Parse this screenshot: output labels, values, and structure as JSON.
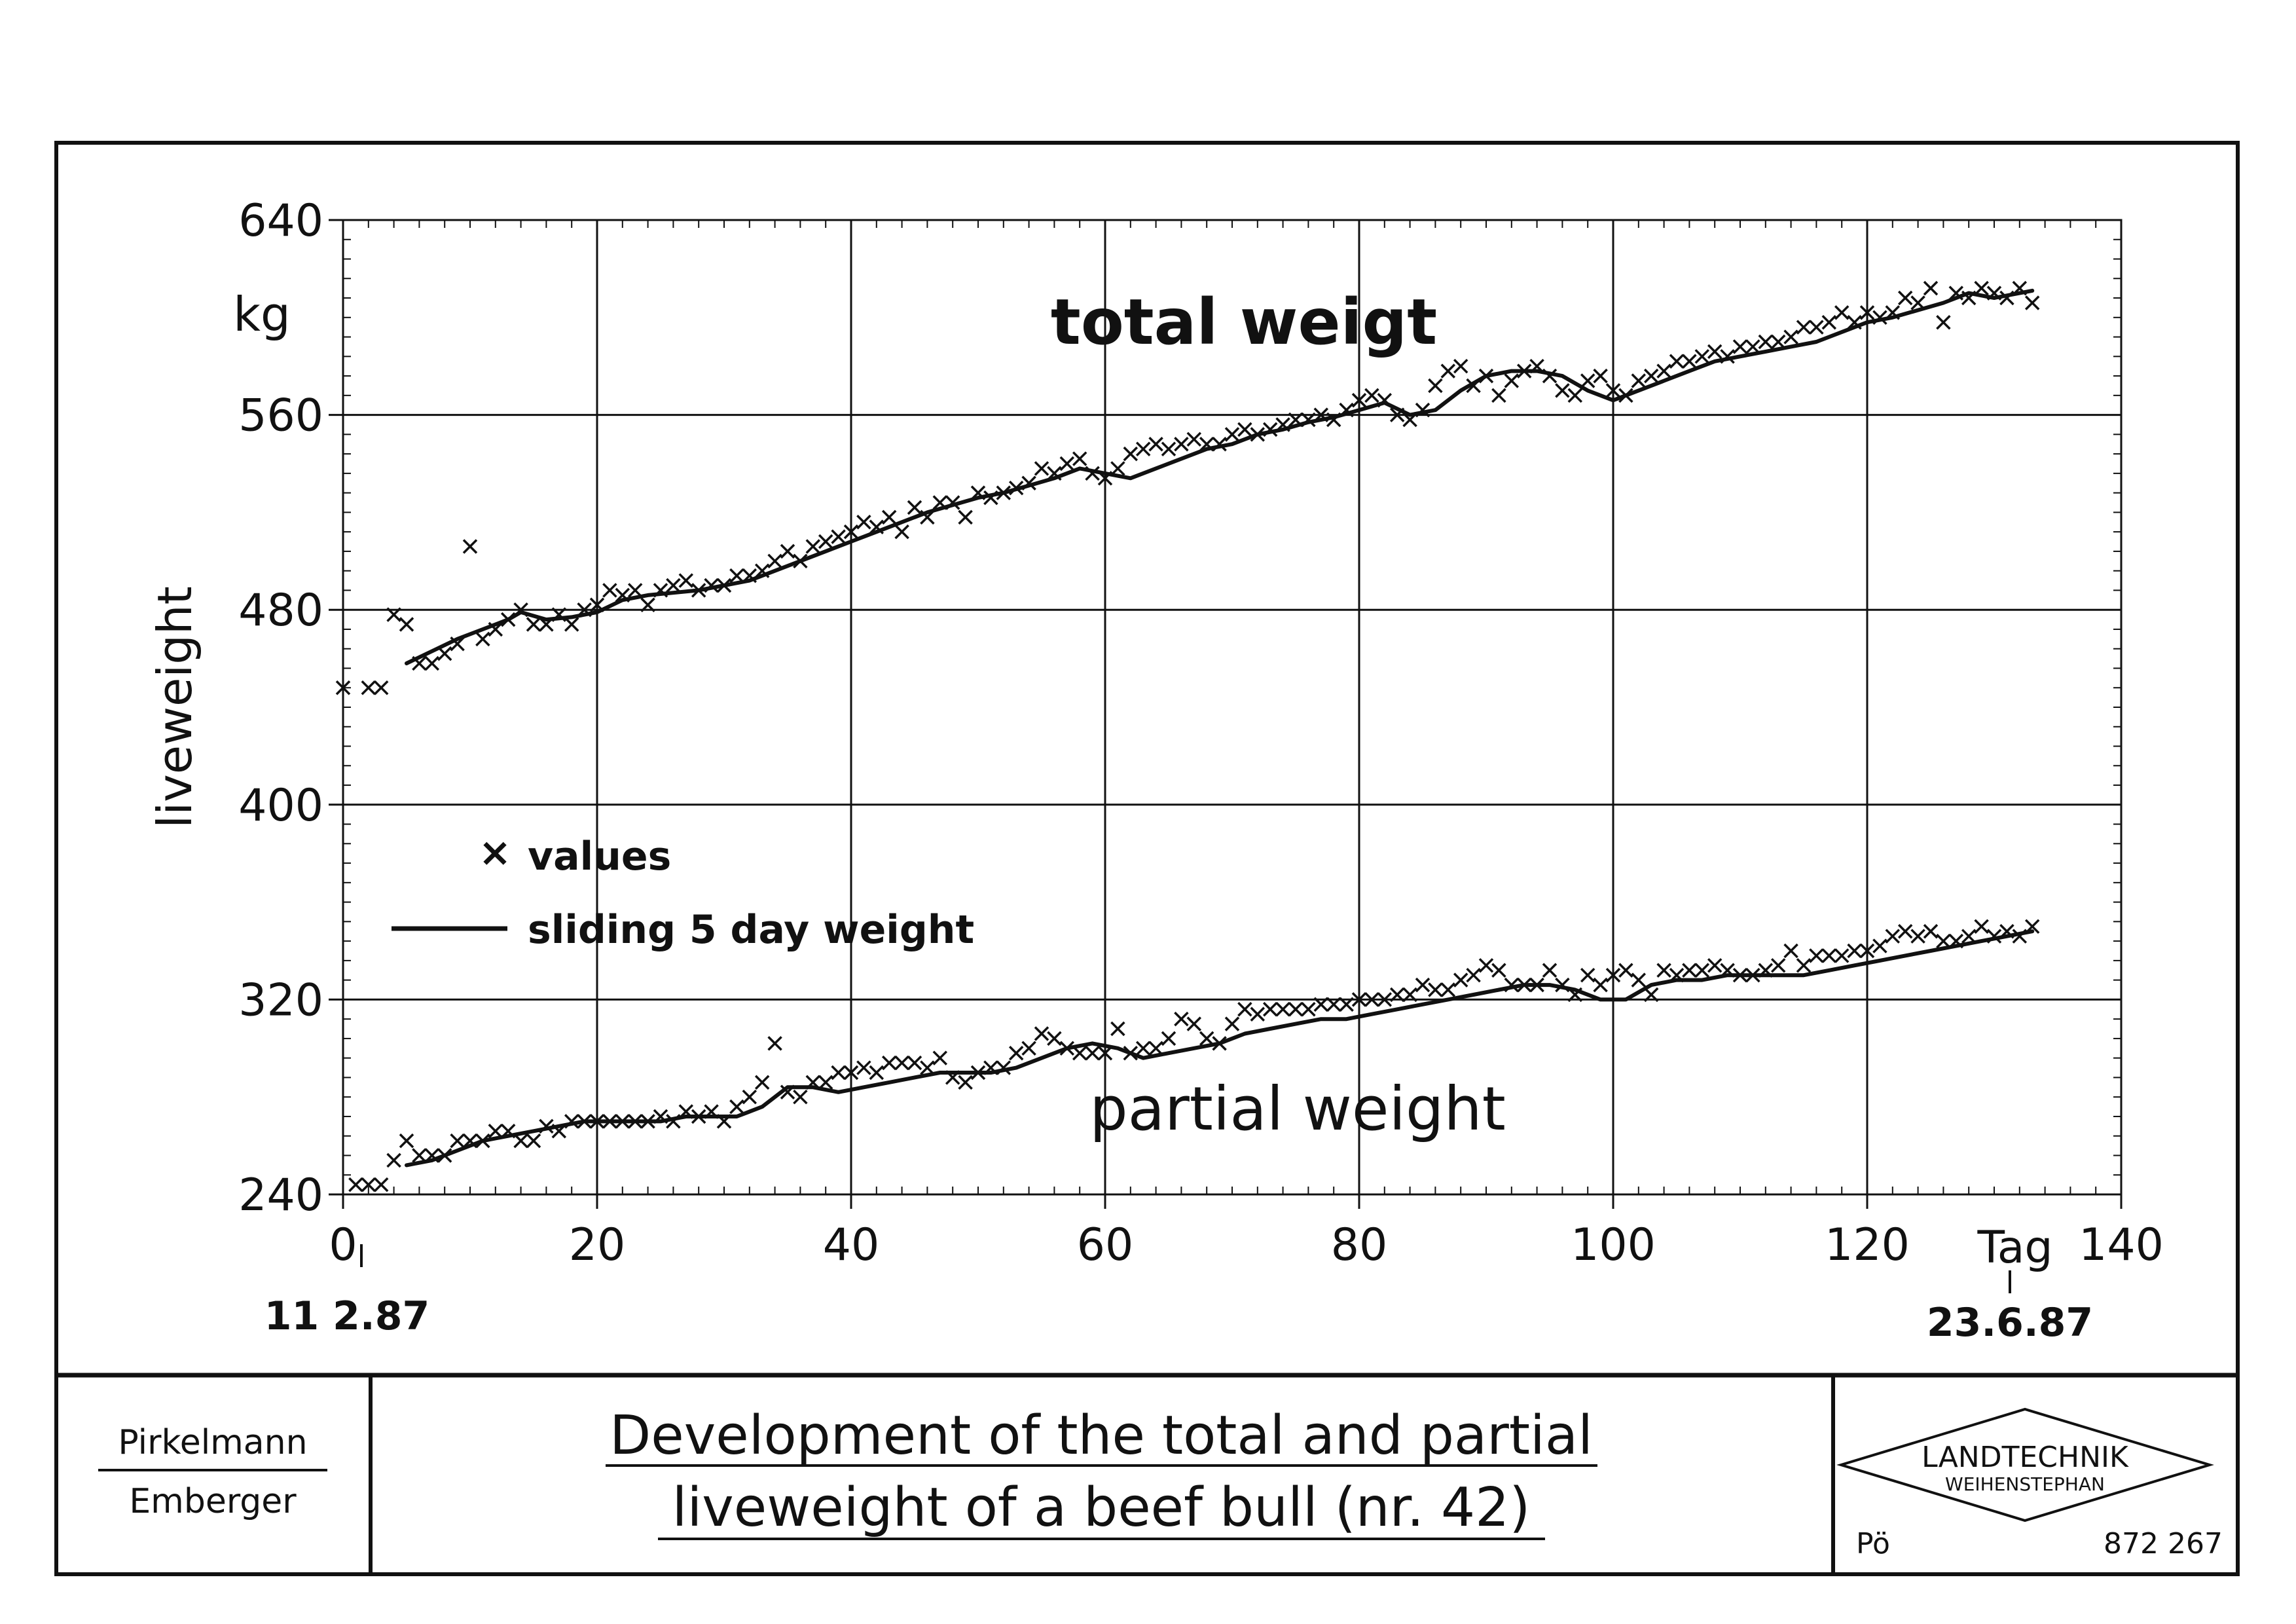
{
  "chart_data": {
    "type": "scatter",
    "ylabel": "liveweight",
    "yunit": "kg",
    "xunit_label": "Tag",
    "xlim": [
      0,
      140
    ],
    "ylim": [
      240,
      640
    ],
    "x_ticks": [
      "0",
      "20",
      "40",
      "60",
      "80",
      "100",
      "120",
      "140"
    ],
    "y_ticks": [
      "240",
      "320",
      "400",
      "480",
      "560",
      "640"
    ],
    "x_minor_step": 2,
    "y_minor_step": 8,
    "grid": true,
    "start_date": "11 2.87",
    "end_date": "23.6.87",
    "end_date_x": 132,
    "legend": {
      "placement": "center-left",
      "values_label": "values",
      "line_label": "sliding 5 day weight"
    },
    "annotations": [
      {
        "text": "total weigt",
        "x": 82,
        "y": 592
      },
      {
        "text": "partial weight",
        "x": 78,
        "y": 268
      }
    ],
    "series": [
      {
        "name": "total weigt",
        "values_x": [
          0,
          2,
          3,
          4,
          5,
          6,
          7,
          8,
          9,
          10,
          11,
          12,
          13,
          14,
          15,
          16,
          17,
          18,
          19,
          20,
          21,
          22,
          23,
          24,
          25,
          26,
          27,
          28,
          29,
          30,
          31,
          32,
          33,
          34,
          35,
          36,
          37,
          38,
          39,
          40,
          41,
          42,
          43,
          44,
          45,
          46,
          47,
          48,
          49,
          50,
          51,
          52,
          53,
          54,
          55,
          56,
          57,
          58,
          59,
          60,
          61,
          62,
          63,
          64,
          65,
          66,
          67,
          68,
          69,
          70,
          71,
          72,
          73,
          74,
          75,
          76,
          77,
          78,
          79,
          80,
          81,
          82,
          83,
          84,
          85,
          86,
          87,
          88,
          89,
          90,
          91,
          92,
          93,
          94,
          95,
          96,
          97,
          98,
          99,
          100,
          101,
          102,
          103,
          104,
          105,
          106,
          107,
          108,
          109,
          110,
          111,
          112,
          113,
          114,
          115,
          116,
          117,
          118,
          119,
          120,
          121,
          122,
          123,
          124,
          125,
          126,
          127,
          128,
          129,
          130,
          131,
          132,
          133
        ],
        "values_y": [
          448,
          448,
          448,
          478,
          474,
          458,
          458,
          462,
          466,
          506,
          468,
          472,
          476,
          480,
          474,
          474,
          478,
          474,
          480,
          482,
          488,
          486,
          488,
          482,
          488,
          490,
          492,
          488,
          490,
          490,
          494,
          494,
          496,
          500,
          504,
          500,
          506,
          508,
          510,
          512,
          516,
          514,
          518,
          512,
          522,
          518,
          524,
          524,
          518,
          528,
          526,
          528,
          530,
          532,
          538,
          536,
          540,
          542,
          536,
          534,
          538,
          544,
          546,
          548,
          546,
          548,
          550,
          548,
          548,
          552,
          554,
          552,
          554,
          556,
          558,
          558,
          560,
          558,
          562,
          566,
          568,
          566,
          560,
          558,
          562,
          572,
          578,
          580,
          572,
          576,
          568,
          574,
          578,
          580,
          576,
          570,
          568,
          574,
          576,
          570,
          568,
          574,
          576,
          578,
          582,
          582,
          584,
          586,
          584,
          588,
          588,
          590,
          590,
          592,
          596,
          596,
          598,
          602,
          598,
          602,
          600,
          602,
          608,
          606,
          612,
          598,
          610,
          608,
          612,
          610,
          608,
          612,
          606
        ],
        "line_x": [
          5,
          7,
          9,
          11,
          13,
          14,
          16,
          18,
          20,
          22,
          24,
          26,
          28,
          30,
          32,
          34,
          36,
          38,
          40,
          42,
          44,
          46,
          48,
          50,
          52,
          54,
          56,
          58,
          60,
          62,
          64,
          66,
          68,
          70,
          72,
          74,
          76,
          78,
          80,
          82,
          84,
          86,
          88,
          90,
          92,
          94,
          96,
          98,
          100,
          102,
          104,
          106,
          108,
          110,
          112,
          114,
          116,
          118,
          120,
          122,
          124,
          126,
          128,
          130,
          132,
          133
        ],
        "line_y": [
          458,
          463,
          468,
          472,
          476,
          479,
          476,
          477,
          479,
          484,
          486,
          487,
          488,
          490,
          492,
          496,
          500,
          504,
          508,
          512,
          516,
          520,
          523,
          526,
          528,
          531,
          534,
          538,
          536,
          534,
          538,
          542,
          546,
          548,
          552,
          554,
          557,
          559,
          562,
          565,
          560,
          562,
          570,
          576,
          578,
          578,
          576,
          570,
          566,
          570,
          574,
          578,
          582,
          584,
          586,
          588,
          590,
          594,
          598,
          600,
          603,
          606,
          610,
          608,
          610,
          611
        ]
      },
      {
        "name": "partial weight",
        "values_x": [
          1,
          2,
          3,
          4,
          5,
          6,
          7,
          8,
          9,
          10,
          11,
          12,
          13,
          14,
          15,
          16,
          17,
          18,
          19,
          20,
          21,
          22,
          23,
          24,
          25,
          26,
          27,
          28,
          29,
          30,
          31,
          32,
          33,
          34,
          35,
          36,
          37,
          38,
          39,
          40,
          41,
          42,
          43,
          44,
          45,
          46,
          47,
          48,
          49,
          50,
          51,
          52,
          53,
          54,
          55,
          56,
          57,
          58,
          59,
          60,
          61,
          62,
          63,
          64,
          65,
          66,
          67,
          68,
          69,
          70,
          71,
          72,
          73,
          74,
          75,
          76,
          77,
          78,
          79,
          80,
          81,
          82,
          83,
          84,
          85,
          86,
          87,
          88,
          89,
          90,
          91,
          92,
          93,
          94,
          95,
          96,
          97,
          98,
          99,
          100,
          101,
          102,
          103,
          104,
          105,
          106,
          107,
          108,
          109,
          110,
          111,
          112,
          113,
          114,
          115,
          116,
          117,
          118,
          119,
          120,
          121,
          122,
          123,
          124,
          125,
          126,
          127,
          128,
          129,
          130,
          131,
          132,
          133
        ],
        "values_y": [
          244,
          244,
          244,
          254,
          262,
          256,
          256,
          256,
          262,
          262,
          262,
          266,
          266,
          262,
          262,
          268,
          266,
          270,
          270,
          270,
          270,
          270,
          270,
          270,
          272,
          270,
          274,
          272,
          274,
          270,
          276,
          280,
          286,
          302,
          282,
          280,
          286,
          286,
          290,
          290,
          292,
          290,
          294,
          294,
          294,
          292,
          296,
          288,
          286,
          290,
          292,
          292,
          298,
          300,
          306,
          304,
          300,
          298,
          298,
          298,
          308,
          298,
          300,
          300,
          304,
          312,
          310,
          304,
          302,
          310,
          316,
          314,
          316,
          316,
          316,
          316,
          318,
          318,
          318,
          320,
          320,
          320,
          322,
          322,
          326,
          324,
          324,
          328,
          330,
          334,
          332,
          326,
          326,
          326,
          332,
          326,
          322,
          330,
          326,
          330,
          332,
          328,
          322,
          332,
          330,
          332,
          332,
          334,
          332,
          330,
          330,
          332,
          334,
          340,
          334,
          338,
          338,
          338,
          340,
          340,
          342,
          346,
          348,
          346,
          348,
          344,
          344,
          346,
          350,
          346,
          348,
          346,
          350
        ]
      },
      {
        "name": "partial weight line",
        "line_x": [
          5,
          7,
          9,
          11,
          13,
          15,
          17,
          19,
          21,
          23,
          25,
          27,
          29,
          31,
          33,
          35,
          37,
          39,
          41,
          43,
          45,
          47,
          49,
          51,
          53,
          55,
          57,
          59,
          61,
          63,
          65,
          67,
          69,
          71,
          73,
          75,
          77,
          79,
          81,
          83,
          85,
          87,
          89,
          91,
          93,
          95,
          97,
          99,
          101,
          103,
          105,
          107,
          109,
          111,
          113,
          115,
          117,
          119,
          121,
          123,
          125,
          127,
          129,
          131,
          133
        ],
        "line_y": [
          252,
          254,
          258,
          262,
          264,
          266,
          268,
          270,
          270,
          270,
          270,
          272,
          272,
          272,
          276,
          284,
          284,
          282,
          284,
          286,
          288,
          290,
          290,
          290,
          292,
          296,
          300,
          302,
          300,
          296,
          298,
          300,
          302,
          306,
          308,
          310,
          312,
          312,
          314,
          316,
          318,
          320,
          322,
          324,
          326,
          326,
          324,
          320,
          320,
          326,
          328,
          328,
          330,
          330,
          330,
          330,
          332,
          334,
          336,
          338,
          340,
          342,
          344,
          346,
          348
        ]
      }
    ]
  },
  "footer": {
    "authors": [
      "Pirkelmann",
      "Emberger"
    ],
    "title_line1": "Development of the total and partial",
    "title_line2": "liveweight of a beef bull (nr. 42)",
    "logo_line1": "LANDTECHNIK",
    "logo_line2": "WEIHENSTEPHAN",
    "meta_left": "Pö",
    "meta_right": "872 267"
  }
}
